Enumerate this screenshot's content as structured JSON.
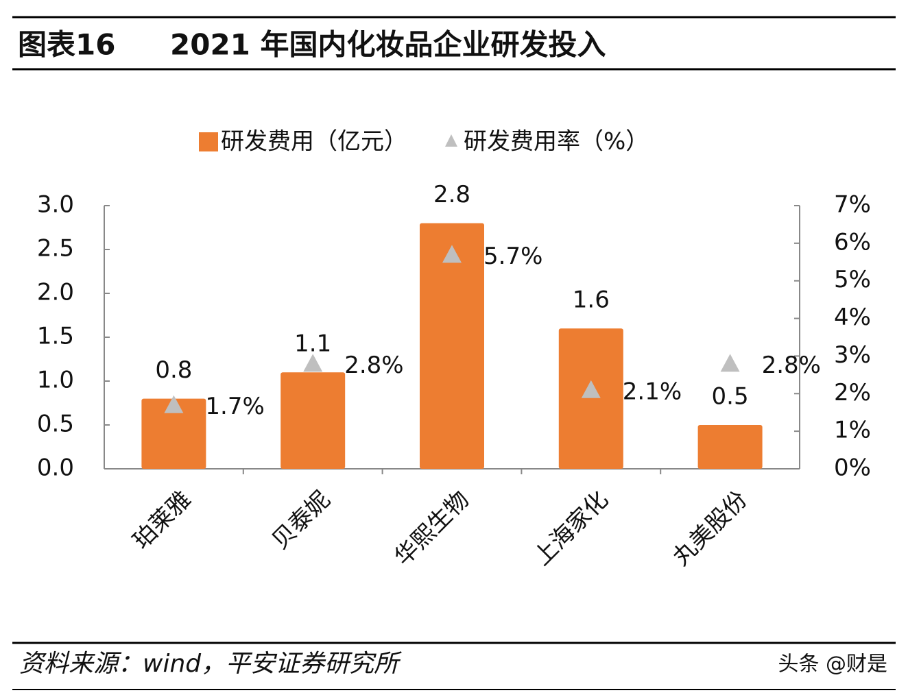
{
  "header": {
    "figure_label": "图表16",
    "title": "2021 年国内化妆品企业研发投入"
  },
  "chart_data": {
    "type": "bar",
    "categories": [
      "珀莱雅",
      "贝泰妮",
      "华熙生物",
      "上海家化",
      "丸美股份"
    ],
    "series": [
      {
        "name": "研发费用（亿元）",
        "type": "bar",
        "color": "#ed7d31",
        "values": [
          0.8,
          1.1,
          2.8,
          1.6,
          0.5
        ]
      },
      {
        "name": "研发费用率（%）",
        "type": "scatter",
        "marker": "triangle",
        "axis": "y2",
        "color": "#bfbfbf",
        "values": [
          1.7,
          2.8,
          5.7,
          2.1,
          2.8
        ],
        "value_labels": [
          "1.7%",
          "2.8%",
          "5.7%",
          "2.1%",
          "2.8%"
        ]
      }
    ],
    "ylim": [
      0,
      3
    ],
    "yticks": [
      {
        "value": 0,
        "label": "0.0"
      },
      0.5,
      {
        "value": 1,
        "label": "1.0"
      },
      1.5,
      {
        "value": 2,
        "label": "2.0"
      },
      2.5,
      {
        "value": 3,
        "label": "3.0"
      }
    ],
    "y2lim": [
      0,
      7
    ],
    "y2ticks": [
      {
        "value": 0,
        "label": "0%"
      },
      {
        "value": 1,
        "label": "1%"
      },
      {
        "value": 2,
        "label": "2%"
      },
      {
        "value": 3,
        "label": "3%"
      },
      {
        "value": 4,
        "label": "4%"
      },
      {
        "value": 5,
        "label": "5%"
      },
      {
        "value": 6,
        "label": "6%"
      },
      {
        "value": 7,
        "label": "7%"
      }
    ],
    "legend": "top"
  },
  "footer": {
    "source": "资料来源：wind，平安证券研究所",
    "watermark": "头条 @财是"
  }
}
